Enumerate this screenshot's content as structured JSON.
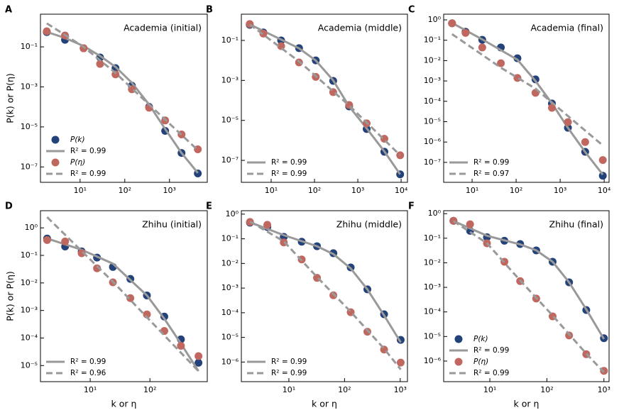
{
  "chart_data": [
    {
      "type": "scatter",
      "letter": "A",
      "title": "Academia (initial)",
      "ylabel": "P(k) or P(η)",
      "xscale": "log",
      "yscale": "log",
      "legend": "lower left",
      "xlim": [
        1.3,
        7000
      ],
      "ylim": [
        1.7e-08,
        4.3
      ],
      "xticks": [
        {
          "value": 10,
          "label": "10¹"
        },
        {
          "value": 100,
          "label": "10²"
        },
        {
          "value": 1000,
          "label": "10³"
        }
      ],
      "yticks": [
        {
          "value": 0.1,
          "label": "10⁻¹"
        },
        {
          "value": 0.001,
          "label": "10⁻³"
        },
        {
          "value": 1e-05,
          "label": "10⁻⁵"
        },
        {
          "value": 1e-07,
          "label": "10⁻⁷"
        }
      ],
      "series": [
        {
          "name": "P(k)",
          "color": "#23427a",
          "x": [
            1.8,
            4.6,
            12,
            28,
            62,
            144,
            350,
            800,
            1860,
            4300
          ],
          "values": [
            0.55,
            0.225,
            0.085,
            0.0295,
            0.0087,
            0.00115,
            0.0001,
            6.3e-06,
            5e-07,
            4.7e-08
          ]
        },
        {
          "name": "R² = 0.99",
          "color": "#999999",
          "line": "solid",
          "x": [
            1.8,
            4.6,
            12,
            28,
            62,
            144,
            350,
            800,
            1860,
            4300
          ],
          "values": [
            0.56,
            0.28,
            0.11,
            0.035,
            0.01,
            0.0016,
            0.00013,
            7.9e-06,
            5e-07,
            5e-08
          ]
        },
        {
          "name": "P(η)",
          "color": "#c0675f",
          "x": [
            1.8,
            4.6,
            12,
            28,
            62,
            144,
            350,
            800,
            1860,
            4300
          ],
          "values": [
            0.6,
            0.37,
            0.085,
            0.014,
            0.0042,
            0.00076,
            9.1e-05,
            2.1e-05,
            4.2e-06,
            7.6e-07
          ]
        },
        {
          "name": "R² = 0.99",
          "color": "#999999",
          "line": "dashed",
          "x": [
            1.8,
            12,
            62,
            350,
            4300
          ],
          "values": [
            1.5,
            0.1,
            0.005,
            0.00013,
            6.9e-07
          ]
        }
      ]
    },
    {
      "type": "scatter",
      "letter": "B",
      "title": "Academia (middle)",
      "xscale": "log",
      "yscale": "log",
      "legend": "lower left",
      "xlim": [
        2.05,
        14000
      ],
      "ylim": [
        8e-09,
        2.05
      ],
      "xticks": [
        {
          "value": 10,
          "label": "10¹"
        },
        {
          "value": 100,
          "label": "10²"
        },
        {
          "value": 1000,
          "label": "10³"
        },
        {
          "value": 10000,
          "label": "10⁴"
        }
      ],
      "yticks": [
        {
          "value": 0.1,
          "label": "10⁻¹"
        },
        {
          "value": 0.001,
          "label": "10⁻³"
        },
        {
          "value": 1e-05,
          "label": "10⁻⁵"
        },
        {
          "value": 1e-07,
          "label": "10⁻⁷"
        }
      ],
      "series": [
        {
          "color": "#23427a",
          "x": [
            3.2,
            6.6,
            17,
            44,
            107,
            270,
            630,
            1600,
            4100,
            9500
          ],
          "values": [
            0.6,
            0.25,
            0.1,
            0.041,
            0.01,
            0.00095,
            5e-05,
            3.7e-06,
            2.7e-07,
            2e-08
          ]
        },
        {
          "name": "R² = 0.99",
          "color": "#999999",
          "line": "solid",
          "x": [
            3.2,
            17,
            44,
            107,
            270,
            630,
            1600,
            4100,
            9500
          ],
          "values": [
            0.63,
            0.11,
            0.04,
            0.01,
            0.001,
            5e-05,
            4e-06,
            2.8e-07,
            2e-08
          ]
        },
        {
          "color": "#c0675f",
          "x": [
            3.2,
            6.6,
            17,
            44,
            107,
            270,
            630,
            1600,
            4100,
            9500
          ],
          "values": [
            0.66,
            0.22,
            0.052,
            0.0079,
            0.0015,
            0.00026,
            5.9e-05,
            7.1e-06,
            1.2e-06,
            1.8e-07
          ]
        },
        {
          "name": "R² = 0.99",
          "color": "#999999",
          "line": "dashed",
          "x": [
            3.2,
            44,
            630,
            9500
          ],
          "values": [
            0.63,
            0.0089,
            5.6e-05,
            1.8e-07
          ]
        }
      ]
    },
    {
      "type": "scatter",
      "letter": "C",
      "title": "Academia (final)",
      "xscale": "log",
      "yscale": "log",
      "legend": "lower left",
      "xlim": [
        2.26,
        12900
      ],
      "ylim": [
        1.05e-08,
        1.9
      ],
      "xticks": [
        {
          "value": 10,
          "label": "10¹"
        },
        {
          "value": 100,
          "label": "10²"
        },
        {
          "value": 1000,
          "label": "10³"
        },
        {
          "value": 10000,
          "label": "10⁴"
        }
      ],
      "yticks": [
        {
          "value": 1,
          "label": "10⁰"
        },
        {
          "value": 0.1,
          "label": "10⁻¹"
        },
        {
          "value": 0.01,
          "label": "10⁻²"
        },
        {
          "value": 0.001,
          "label": "10⁻³"
        },
        {
          "value": 0.0001,
          "label": "10⁻⁴"
        },
        {
          "value": 1e-05,
          "label": "10⁻⁵"
        },
        {
          "value": 1e-06,
          "label": "10⁻⁶"
        },
        {
          "value": 1e-07,
          "label": "10⁻⁷"
        }
      ],
      "series": [
        {
          "color": "#23427a",
          "x": [
            3.5,
            7.1,
            17,
            45,
            107,
            275,
            650,
            1500,
            3700,
            9300
          ],
          "values": [
            0.68,
            0.26,
            0.105,
            0.044,
            0.013,
            0.0012,
            7.8e-05,
            5e-06,
            3.3e-07,
            2.2e-08
          ]
        },
        {
          "name": "R² = 0.99",
          "color": "#999999",
          "line": "solid",
          "x": [
            3.5,
            17,
            107,
            275,
            650,
            1500,
            3700,
            9300
          ],
          "values": [
            0.71,
            0.11,
            0.011,
            0.001,
            7.9e-05,
            5e-06,
            3.2e-07,
            2.5e-08
          ]
        },
        {
          "color": "#c0675f",
          "x": [
            3.5,
            7.1,
            17,
            45,
            107,
            275,
            650,
            1500,
            3700,
            9300
          ],
          "values": [
            0.68,
            0.23,
            0.044,
            0.0074,
            0.0014,
            0.00026,
            4.8e-05,
            9.5e-06,
            1e-06,
            1.3e-07
          ]
        },
        {
          "name": "R² = 0.97",
          "color": "#999999",
          "line": "dashed",
          "x": [
            3.5,
            45,
            275,
            9300
          ],
          "values": [
            0.2,
            0.0045,
            0.00042,
            6.8e-07
          ]
        }
      ]
    },
    {
      "type": "scatter",
      "letter": "D",
      "title": "Zhihu (initial)",
      "ylabel": "P(k) or P(η)",
      "xlabel": "k or η",
      "xscale": "log",
      "yscale": "log",
      "legend": "lower left",
      "xlim": [
        1.47,
        912
      ],
      "ylim": [
        2.6e-06,
        4.2
      ],
      "xticks": [
        {
          "value": 10,
          "label": "10¹"
        },
        {
          "value": 100,
          "label": "10²"
        }
      ],
      "yticks": [
        {
          "value": 1,
          "label": "10⁰"
        },
        {
          "value": 0.1,
          "label": "10⁻¹"
        },
        {
          "value": 0.01,
          "label": "10⁻²"
        },
        {
          "value": 0.001,
          "label": "10⁻³"
        },
        {
          "value": 0.0001,
          "label": "10⁻⁴"
        },
        {
          "value": 1e-05,
          "label": "10⁻⁵"
        }
      ],
      "series": [
        {
          "color": "#23427a",
          "x": [
            1.9,
            3.8,
            7.2,
            13,
            24,
            47,
            89,
            174,
            330,
            650
          ],
          "values": [
            0.41,
            0.21,
            0.14,
            0.083,
            0.038,
            0.014,
            0.0035,
            0.0006,
            8.9e-05,
            1.26e-05
          ]
        },
        {
          "name": "R² = 0.99",
          "color": "#999999",
          "line": "solid",
          "x": [
            1.9,
            7.2,
            24,
            89,
            174,
            330,
            650
          ],
          "values": [
            0.41,
            0.16,
            0.05,
            0.0035,
            0.0005,
            6.3e-05,
            6.3e-06
          ]
        },
        {
          "color": "#c0675f",
          "x": [
            1.9,
            3.8,
            7.2,
            13,
            24,
            47,
            89,
            174,
            330,
            650
          ],
          "values": [
            0.36,
            0.32,
            0.12,
            0.034,
            0.0105,
            0.0028,
            0.00072,
            0.00018,
            5.2e-05,
            2.2e-05
          ]
        },
        {
          "name": "R² = 0.96",
          "color": "#999999",
          "line": "dashed",
          "x": [
            1.9,
            24,
            650
          ],
          "values": [
            2.45,
            0.011,
            6.3e-06
          ]
        }
      ]
    },
    {
      "type": "scatter",
      "letter": "E",
      "title": "Zhihu (middle)",
      "xlabel": "k or η",
      "xscale": "log",
      "yscale": "log",
      "legend": "lower left",
      "xlim": [
        1.4,
        1350
      ],
      "ylim": [
        1.6e-07,
        1.38
      ],
      "xticks": [
        {
          "value": 10,
          "label": "10¹"
        },
        {
          "value": 100,
          "label": "10²"
        },
        {
          "value": 1000,
          "label": "10³"
        }
      ],
      "yticks": [
        {
          "value": 1,
          "label": "10⁰"
        },
        {
          "value": 0.1,
          "label": "10⁻¹"
        },
        {
          "value": 0.01,
          "label": "10⁻²"
        },
        {
          "value": 0.001,
          "label": "10⁻³"
        },
        {
          "value": 0.0001,
          "label": "10⁻⁴"
        },
        {
          "value": 1e-05,
          "label": "10⁻⁵"
        },
        {
          "value": 1e-06,
          "label": "10⁻⁶"
        }
      ],
      "series": [
        {
          "color": "#23427a",
          "x": [
            2,
            4.1,
            8.1,
            17,
            32,
            63,
            129,
            257,
            513,
            1020
          ],
          "values": [
            0.45,
            0.3,
            0.12,
            0.076,
            0.05,
            0.026,
            0.0069,
            0.00089,
            8.7e-05,
            7.9e-06
          ]
        },
        {
          "name": "R² = 0.99",
          "color": "#999999",
          "line": "solid",
          "x": [
            2,
            8.1,
            32,
            63,
            129,
            257,
            513,
            1020
          ],
          "values": [
            0.47,
            0.14,
            0.05,
            0.024,
            0.0063,
            0.00089,
            7.9e-05,
            6.3e-06
          ]
        },
        {
          "color": "#c0675f",
          "x": [
            2,
            4.1,
            8.1,
            17,
            32,
            63,
            129,
            257,
            513,
            1020
          ],
          "values": [
            0.48,
            0.37,
            0.071,
            0.0145,
            0.0026,
            0.00051,
            0.000105,
            1.7e-05,
            3.2e-06,
            9.5e-07
          ]
        },
        {
          "name": "R² = 0.99",
          "color": "#999999",
          "line": "dashed",
          "x": [
            2,
            8.1,
            32,
            129,
            513,
            1020
          ],
          "values": [
            0.5,
            0.079,
            0.0028,
            0.00011,
            3.5e-06,
            5e-07
          ]
        }
      ]
    },
    {
      "type": "scatter",
      "letter": "F",
      "title": "Zhihu (final)",
      "xlabel": "k or η",
      "xscale": "log",
      "yscale": "log",
      "legend": "lower left",
      "xlim": [
        1.55,
        1230
      ],
      "ylim": [
        1.45e-07,
        1.32
      ],
      "xticks": [
        {
          "value": 10,
          "label": "10¹"
        },
        {
          "value": 100,
          "label": "10²"
        },
        {
          "value": 1000,
          "label": "10³"
        }
      ],
      "yticks": [
        {
          "value": 1,
          "label": "10⁰"
        },
        {
          "value": 0.1,
          "label": "10⁻¹"
        },
        {
          "value": 0.01,
          "label": "10⁻²"
        },
        {
          "value": 0.001,
          "label": "10⁻³"
        },
        {
          "value": 0.0001,
          "label": "10⁻⁴"
        },
        {
          "value": 1e-05,
          "label": "10⁻⁵"
        },
        {
          "value": 1e-06,
          "label": "10⁻⁶"
        }
      ],
      "series": [
        {
          "name": "P(k)",
          "color": "#23427a",
          "x": [
            2.3,
            4.5,
            8.9,
            18,
            34,
            65,
            126,
            245,
            490,
            1000
          ],
          "values": [
            0.51,
            0.2,
            0.11,
            0.079,
            0.058,
            0.032,
            0.011,
            0.0016,
            0.00012,
            8.5e-06
          ]
        },
        {
          "name": "R² = 0.99",
          "color": "#999999",
          "line": "solid",
          "x": [
            2.3,
            8.9,
            34,
            65,
            126,
            245,
            490,
            1000
          ],
          "values": [
            0.5,
            0.126,
            0.056,
            0.032,
            0.011,
            0.0016,
            0.000126,
            7.9e-06
          ]
        },
        {
          "name": "P(η)",
          "color": "#c0675f",
          "x": [
            2.3,
            4.5,
            8.9,
            18,
            34,
            65,
            126,
            245,
            490,
            1000
          ],
          "values": [
            0.51,
            0.37,
            0.062,
            0.011,
            0.0018,
            0.00035,
            6.6e-05,
            1.1e-05,
            1.9e-06,
            4e-07
          ]
        },
        {
          "name": "R² = 0.99",
          "color": "#999999",
          "line": "dashed",
          "x": [
            2.3,
            8.9,
            34,
            126,
            490,
            1000
          ],
          "values": [
            0.5,
            0.063,
            0.0019,
            7.1e-05,
            2e-06,
            3.5e-07
          ]
        }
      ]
    }
  ]
}
